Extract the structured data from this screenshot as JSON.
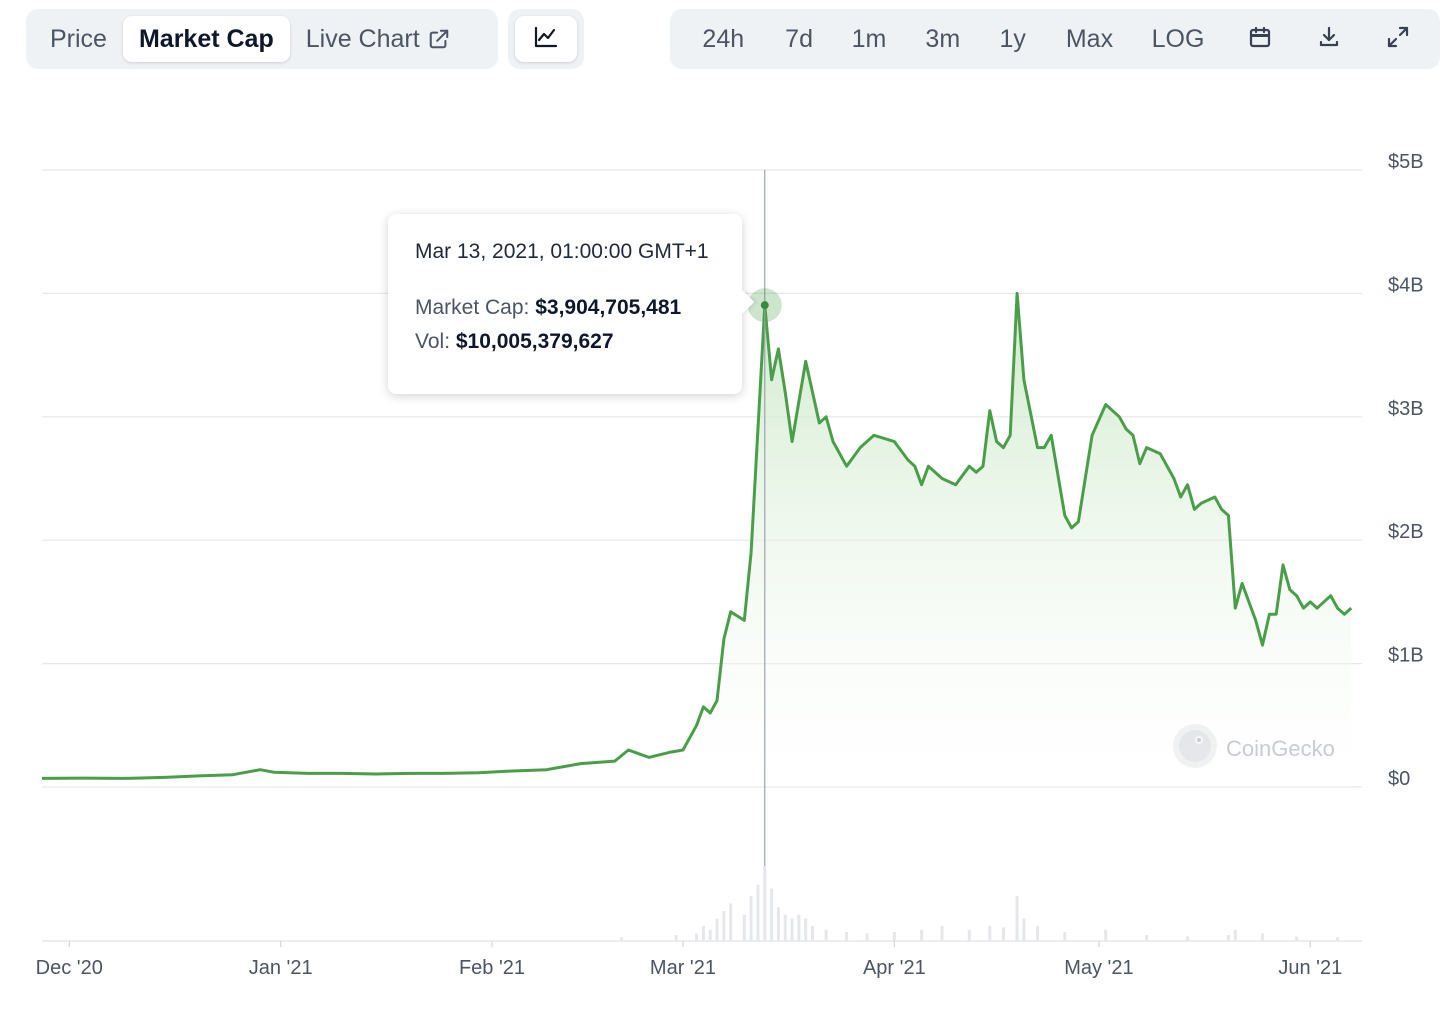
{
  "tabs": {
    "price": "Price",
    "market_cap": "Market Cap",
    "live_chart": "Live Chart",
    "active": "market_cap"
  },
  "chart_type_icon": "line-chart-icon",
  "ranges": [
    "24h",
    "7d",
    "1m",
    "3m",
    "1y",
    "Max",
    "LOG"
  ],
  "toolbar_icons": [
    "calendar-icon",
    "download-icon",
    "expand-icon"
  ],
  "tooltip": {
    "date": "Mar 13, 2021, 01:00:00 GMT+1",
    "market_cap_label": "Market Cap:",
    "market_cap_value": "$3,904,705,481",
    "vol_label": "Vol:",
    "vol_value": "$10,005,379,627"
  },
  "watermark": "CoinGecko",
  "colors": {
    "line": "#4a9e4a",
    "fill": "#d9eed7",
    "grid": "#e5e7eb",
    "crosshair": "#9ca3af"
  },
  "chart_data": {
    "type": "area",
    "title": "",
    "xlabel": "",
    "ylabel": "",
    "ylim": [
      0,
      5000000000
    ],
    "y_ticks": [
      {
        "value": 0,
        "label": "$0"
      },
      {
        "value": 1000000000,
        "label": "$1B"
      },
      {
        "value": 2000000000,
        "label": "$2B"
      },
      {
        "value": 3000000000,
        "label": "$3B"
      },
      {
        "value": 4000000000,
        "label": "$4B"
      },
      {
        "value": 5000000000,
        "label": "$5B"
      }
    ],
    "x_range": [
      "2020-11-27",
      "2021-06-08"
    ],
    "x_ticks": [
      {
        "date": "2020-12-01",
        "label": "Dec '20"
      },
      {
        "date": "2021-01-01",
        "label": "Jan '21"
      },
      {
        "date": "2021-02-01",
        "label": "Feb '21"
      },
      {
        "date": "2021-03-01",
        "label": "Mar '21"
      },
      {
        "date": "2021-04-01",
        "label": "Apr '21"
      },
      {
        "date": "2021-05-01",
        "label": "May '21"
      },
      {
        "date": "2021-06-01",
        "label": "Jun '21"
      }
    ],
    "grid": true,
    "series": [
      {
        "points": [
          [
            "2020-11-27",
            70000000
          ],
          [
            "2020-12-03",
            72000000
          ],
          [
            "2020-12-09",
            70000000
          ],
          [
            "2020-12-15",
            78000000
          ],
          [
            "2020-12-20",
            90000000
          ],
          [
            "2020-12-25",
            100000000
          ],
          [
            "2020-12-29",
            140000000
          ],
          [
            "2020-12-31",
            120000000
          ],
          [
            "2021-01-05",
            110000000
          ],
          [
            "2021-01-10",
            110000000
          ],
          [
            "2021-01-15",
            105000000
          ],
          [
            "2021-01-20",
            110000000
          ],
          [
            "2021-01-25",
            110000000
          ],
          [
            "2021-01-30",
            115000000
          ],
          [
            "2021-02-04",
            130000000
          ],
          [
            "2021-02-09",
            140000000
          ],
          [
            "2021-02-14",
            190000000
          ],
          [
            "2021-02-19",
            210000000
          ],
          [
            "2021-02-21",
            300000000
          ],
          [
            "2021-02-24",
            240000000
          ],
          [
            "2021-02-27",
            280000000
          ],
          [
            "2021-03-01",
            300000000
          ],
          [
            "2021-03-03",
            500000000
          ],
          [
            "2021-03-04",
            650000000
          ],
          [
            "2021-03-05",
            600000000
          ],
          [
            "2021-03-06",
            700000000
          ],
          [
            "2021-03-07",
            1200000000
          ],
          [
            "2021-03-08",
            1420000000
          ],
          [
            "2021-03-10",
            1350000000
          ],
          [
            "2021-03-11",
            1900000000
          ],
          [
            "2021-03-13",
            3904705481
          ],
          [
            "2021-03-14",
            3300000000
          ],
          [
            "2021-03-15",
            3550000000
          ],
          [
            "2021-03-16",
            3200000000
          ],
          [
            "2021-03-17",
            2800000000
          ],
          [
            "2021-03-19",
            3450000000
          ],
          [
            "2021-03-21",
            2950000000
          ],
          [
            "2021-03-22",
            3000000000
          ],
          [
            "2021-03-23",
            2800000000
          ],
          [
            "2021-03-25",
            2600000000
          ],
          [
            "2021-03-27",
            2750000000
          ],
          [
            "2021-03-29",
            2850000000
          ],
          [
            "2021-04-01",
            2800000000
          ],
          [
            "2021-04-03",
            2650000000
          ],
          [
            "2021-04-04",
            2600000000
          ],
          [
            "2021-04-05",
            2450000000
          ],
          [
            "2021-04-06",
            2600000000
          ],
          [
            "2021-04-08",
            2500000000
          ],
          [
            "2021-04-10",
            2450000000
          ],
          [
            "2021-04-12",
            2600000000
          ],
          [
            "2021-04-13",
            2550000000
          ],
          [
            "2021-04-14",
            2600000000
          ],
          [
            "2021-04-15",
            3050000000
          ],
          [
            "2021-04-16",
            2800000000
          ],
          [
            "2021-04-17",
            2750000000
          ],
          [
            "2021-04-18",
            2850000000
          ],
          [
            "2021-04-19",
            4000000000
          ],
          [
            "2021-04-20",
            3300000000
          ],
          [
            "2021-04-22",
            2750000000
          ],
          [
            "2021-04-23",
            2750000000
          ],
          [
            "2021-04-24",
            2850000000
          ],
          [
            "2021-04-26",
            2200000000
          ],
          [
            "2021-04-27",
            2100000000
          ],
          [
            "2021-04-28",
            2150000000
          ],
          [
            "2021-04-30",
            2850000000
          ],
          [
            "2021-05-02",
            3100000000
          ],
          [
            "2021-05-04",
            3000000000
          ],
          [
            "2021-05-05",
            2900000000
          ],
          [
            "2021-05-06",
            2850000000
          ],
          [
            "2021-05-07",
            2620000000
          ],
          [
            "2021-05-08",
            2750000000
          ],
          [
            "2021-05-10",
            2700000000
          ],
          [
            "2021-05-11",
            2600000000
          ],
          [
            "2021-05-12",
            2500000000
          ],
          [
            "2021-05-13",
            2350000000
          ],
          [
            "2021-05-14",
            2450000000
          ],
          [
            "2021-05-15",
            2250000000
          ],
          [
            "2021-05-16",
            2300000000
          ],
          [
            "2021-05-18",
            2350000000
          ],
          [
            "2021-05-19",
            2250000000
          ],
          [
            "2021-05-20",
            2200000000
          ],
          [
            "2021-05-21",
            1450000000
          ],
          [
            "2021-05-22",
            1650000000
          ],
          [
            "2021-05-24",
            1350000000
          ],
          [
            "2021-05-25",
            1150000000
          ],
          [
            "2021-05-26",
            1400000000
          ],
          [
            "2021-05-27",
            1400000000
          ],
          [
            "2021-05-28",
            1800000000
          ],
          [
            "2021-05-29",
            1600000000
          ],
          [
            "2021-05-30",
            1550000000
          ],
          [
            "2021-05-31",
            1450000000
          ],
          [
            "2021-06-01",
            1500000000
          ],
          [
            "2021-06-02",
            1450000000
          ],
          [
            "2021-06-04",
            1550000000
          ],
          [
            "2021-06-05",
            1450000000
          ],
          [
            "2021-06-06",
            1400000000
          ],
          [
            "2021-06-07",
            1450000000
          ]
        ]
      }
    ],
    "volume_relative": [
      [
        "2021-02-20",
        0.05
      ],
      [
        "2021-02-28",
        0.08
      ],
      [
        "2021-03-03",
        0.1
      ],
      [
        "2021-03-04",
        0.2
      ],
      [
        "2021-03-05",
        0.15
      ],
      [
        "2021-03-06",
        0.3
      ],
      [
        "2021-03-07",
        0.4
      ],
      [
        "2021-03-08",
        0.5
      ],
      [
        "2021-03-10",
        0.35
      ],
      [
        "2021-03-11",
        0.6
      ],
      [
        "2021-03-12",
        0.75
      ],
      [
        "2021-03-13",
        1.0
      ],
      [
        "2021-03-14",
        0.7
      ],
      [
        "2021-03-15",
        0.45
      ],
      [
        "2021-03-16",
        0.35
      ],
      [
        "2021-03-17",
        0.3
      ],
      [
        "2021-03-18",
        0.35
      ],
      [
        "2021-03-19",
        0.3
      ],
      [
        "2021-03-20",
        0.2
      ],
      [
        "2021-03-22",
        0.15
      ],
      [
        "2021-03-25",
        0.12
      ],
      [
        "2021-03-28",
        0.1
      ],
      [
        "2021-04-01",
        0.12
      ],
      [
        "2021-04-05",
        0.15
      ],
      [
        "2021-04-08",
        0.2
      ],
      [
        "2021-04-12",
        0.15
      ],
      [
        "2021-04-15",
        0.2
      ],
      [
        "2021-04-17",
        0.18
      ],
      [
        "2021-04-19",
        0.6
      ],
      [
        "2021-04-20",
        0.3
      ],
      [
        "2021-04-22",
        0.2
      ],
      [
        "2021-04-26",
        0.12
      ],
      [
        "2021-05-02",
        0.15
      ],
      [
        "2021-05-08",
        0.08
      ],
      [
        "2021-05-14",
        0.06
      ],
      [
        "2021-05-20",
        0.08
      ],
      [
        "2021-05-21",
        0.15
      ],
      [
        "2021-05-25",
        0.1
      ],
      [
        "2021-05-30",
        0.06
      ],
      [
        "2021-06-05",
        0.05
      ]
    ],
    "crosshair_date": "2021-03-13",
    "crosshair_value": 3904705481
  }
}
